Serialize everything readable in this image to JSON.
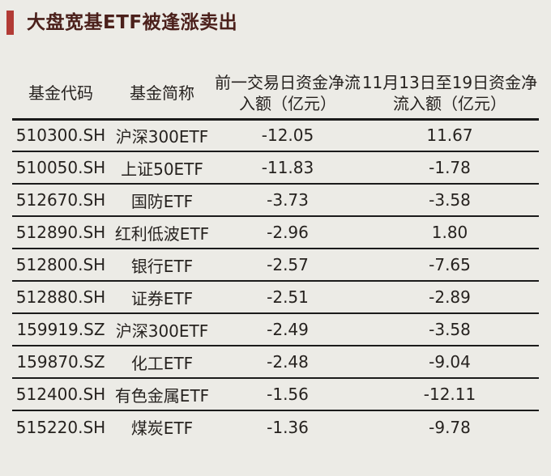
{
  "title": "大盘宽基ETF被逢涨卖出",
  "colors": {
    "background": "#ECEBE6",
    "accent_red": "#B23B35",
    "title_text": "#4B201B",
    "body_text": "#26221F",
    "divider": "#1B1B1B"
  },
  "table": {
    "headers": {
      "code": "基金代码",
      "name": "基金简称",
      "prev_full": "前一交易日资金净流入额（亿元）",
      "prev_line1": "前一交易日资金净流",
      "prev_line2": "入额（亿元）",
      "range_full": "11月13日至19日资金净流入额（亿元）",
      "range_line1": "11月13日至19日资金净",
      "range_line2": "流入额（亿元）"
    },
    "rows": [
      {
        "code": "510300.SH",
        "name": "沪深300ETF",
        "prev": "-12.05",
        "range": "11.67"
      },
      {
        "code": "510050.SH",
        "name": "上证50ETF",
        "prev": "-11.83",
        "range": "-1.78"
      },
      {
        "code": "512670.SH",
        "name": "国防ETF",
        "prev": "-3.73",
        "range": "-3.58"
      },
      {
        "code": "512890.SH",
        "name": "红利低波ETF",
        "prev": "-2.96",
        "range": "1.80"
      },
      {
        "code": "512800.SH",
        "name": "银行ETF",
        "prev": "-2.57",
        "range": "-7.65"
      },
      {
        "code": "512880.SH",
        "name": "证券ETF",
        "prev": "-2.51",
        "range": "-2.89"
      },
      {
        "code": "159919.SZ",
        "name": "沪深300ETF",
        "prev": "-2.49",
        "range": "-3.58"
      },
      {
        "code": "159870.SZ",
        "name": "化工ETF",
        "prev": "-2.48",
        "range": "-9.04"
      },
      {
        "code": "512400.SH",
        "name": "有色金属ETF",
        "prev": "-1.56",
        "range": "-12.11"
      },
      {
        "code": "515220.SH",
        "name": "煤炭ETF",
        "prev": "-1.36",
        "range": "-9.78"
      }
    ]
  },
  "chart_data": {
    "type": "table",
    "title": "大盘宽基ETF被逢涨卖出",
    "columns": [
      "基金代码",
      "基金简称",
      "前一交易日资金净流入额（亿元）",
      "11月13日至19日资金净流入额（亿元）"
    ],
    "rows": [
      [
        "510300.SH",
        "沪深300ETF",
        -12.05,
        11.67
      ],
      [
        "510050.SH",
        "上证50ETF",
        -11.83,
        -1.78
      ],
      [
        "512670.SH",
        "国防ETF",
        -3.73,
        -3.58
      ],
      [
        "512890.SH",
        "红利低波ETF",
        -2.96,
        1.8
      ],
      [
        "512800.SH",
        "银行ETF",
        -2.57,
        -7.65
      ],
      [
        "512880.SH",
        "证券ETF",
        -2.51,
        -2.89
      ],
      [
        "159919.SZ",
        "沪深300ETF",
        -2.49,
        -3.58
      ],
      [
        "159870.SZ",
        "化工ETF",
        -2.48,
        -9.04
      ],
      [
        "512400.SH",
        "有色金属ETF",
        -1.56,
        -12.11
      ],
      [
        "515220.SH",
        "煤炭ETF",
        -1.36,
        -9.78
      ]
    ]
  }
}
